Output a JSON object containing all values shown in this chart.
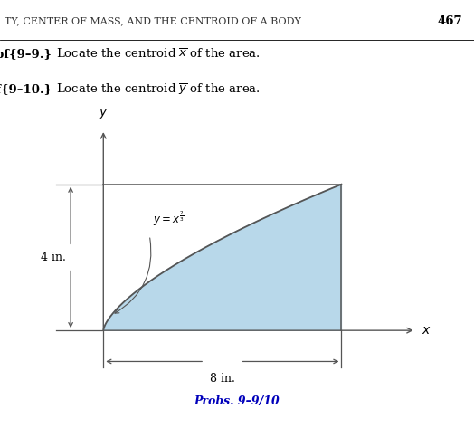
{
  "title_text": "TY, CENTER OF MASS, AND THE CENTROID OF A BODY",
  "page_number": "467",
  "x_max": 8,
  "y_max": 4,
  "curve_label_main": "$y = x^{\\frac{2}{3}}$",
  "x_label": "$x$",
  "y_label": "$y$",
  "dim_x": "8 in.",
  "dim_y": "4 in.",
  "probs_label": "Probs. 9–9/10",
  "fill_color": "#b8d8ea",
  "fill_alpha": 1.0,
  "line_color": "#555555",
  "background_color": "#ffffff",
  "title_color": "#333333",
  "probs_color": "#0000bb",
  "figwidth": 5.24,
  "figheight": 4.73,
  "dpi": 100
}
